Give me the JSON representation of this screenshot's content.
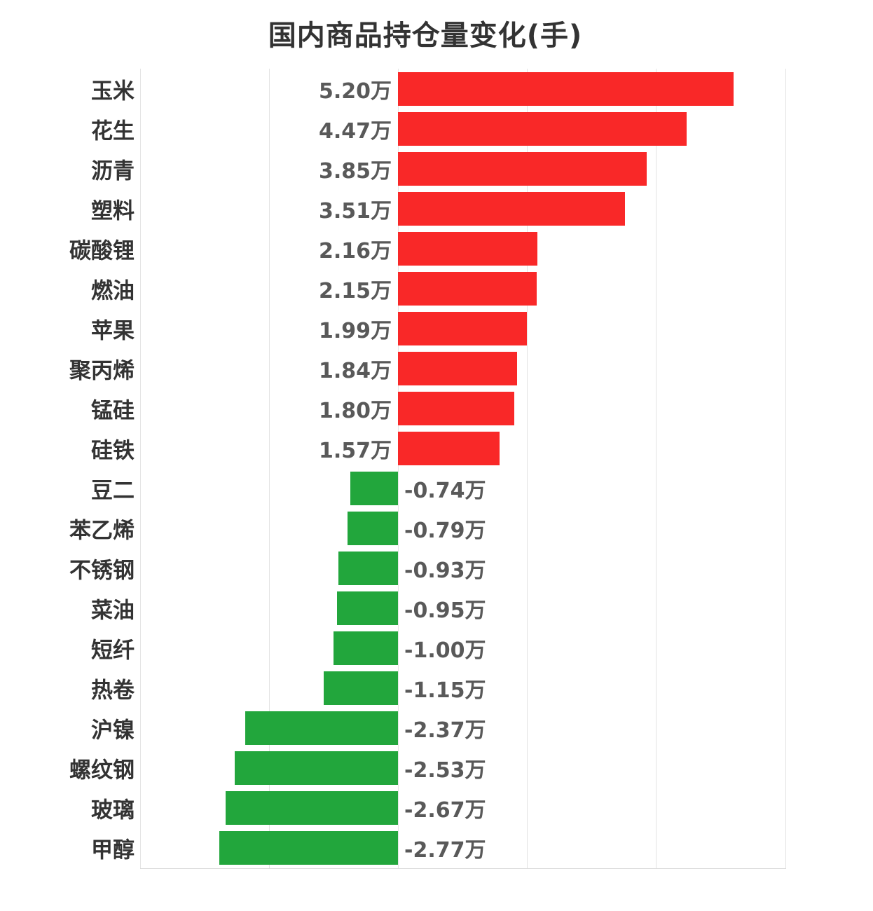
{
  "title": "国内商品持仓量变化(手)",
  "colors": {
    "background": "#ffffff",
    "positive_bar": "#f92828",
    "negative_bar": "#22a63c",
    "gridline": "#e4e4e4",
    "axis_line": "#d9d9d9",
    "title_text": "#333333",
    "category_text": "#333333",
    "value_text": "#595959"
  },
  "chart_data": {
    "type": "bar",
    "orientation": "horizontal",
    "title": "国内商品持仓量变化(手)",
    "unit": "万",
    "categories": [
      "玉米",
      "花生",
      "沥青",
      "塑料",
      "碳酸锂",
      "燃油",
      "苹果",
      "聚丙烯",
      "锰硅",
      "硅铁",
      "豆二",
      "苯乙烯",
      "不锈钢",
      "菜油",
      "短纤",
      "热卷",
      "沪镍",
      "螺纹钢",
      "玻璃",
      "甲醇"
    ],
    "values": [
      5.2,
      4.47,
      3.85,
      3.51,
      2.16,
      2.15,
      1.99,
      1.84,
      1.8,
      1.57,
      -0.74,
      -0.79,
      -0.93,
      -0.95,
      -1.0,
      -1.15,
      -2.37,
      -2.53,
      -2.67,
      -2.77
    ],
    "value_labels": [
      "5.20万",
      "4.47万",
      "3.85万",
      "3.51万",
      "2.16万",
      "2.15万",
      "1.99万",
      "1.84万",
      "1.80万",
      "1.57万",
      "-0.74万",
      "-0.79万",
      "-0.93万",
      "-0.95万",
      "-1.00万",
      "-1.15万",
      "-2.37万",
      "-2.53万",
      "-2.67万",
      "-2.77万"
    ],
    "xlim": [
      -4,
      6
    ],
    "gridline_values": [
      -4,
      -2,
      0,
      2,
      4,
      6
    ],
    "grid": true,
    "legend": false,
    "xlabel": "",
    "ylabel": ""
  }
}
